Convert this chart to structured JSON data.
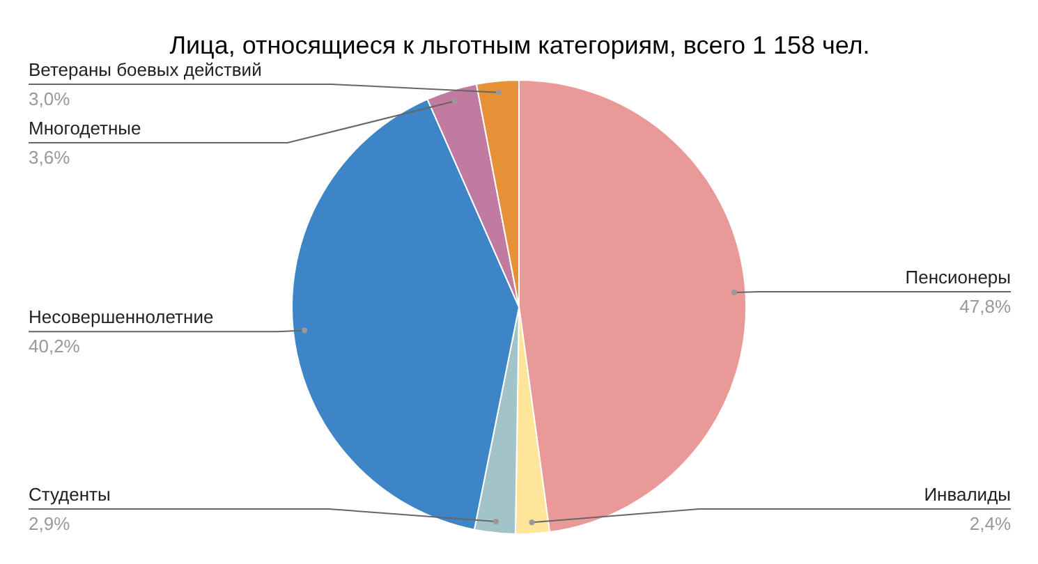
{
  "chart_data": {
    "type": "pie",
    "title": "Лица, относящиеся к льготным категориям, всего 1 158 чел.",
    "categories": [
      "Пенсионеры",
      "Инвалиды",
      "Студенты",
      "Несовершеннолетние",
      "Многодетные",
      "Ветераны боевых действий"
    ],
    "values": [
      47.8,
      2.4,
      2.9,
      40.2,
      3.6,
      3.0
    ],
    "value_labels": [
      "47,8%",
      "2,4%",
      "2,9%",
      "40,2%",
      "3,6%",
      "3,0%"
    ],
    "colors": [
      "#ea9999",
      "#ffe599",
      "#a2c4c9",
      "#3d85c6",
      "#c27ba0",
      "#e69138"
    ]
  }
}
